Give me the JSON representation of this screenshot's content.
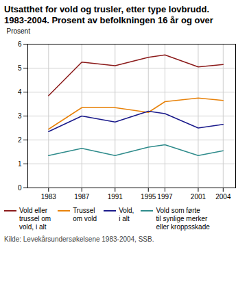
{
  "chart_data": {
    "type": "line",
    "title": "Utsatthet for vold og trusler, etter type lovbrudd.",
    "subtitle": "1983-2004. Prosent av befolkningen 16 år og over",
    "ylabel": "Prosent",
    "source": "Kilde: Levekårsundersøkelsene 1983-2004, SSB.",
    "x": [
      1983,
      1987,
      1991,
      1995,
      1997,
      2001,
      2004
    ],
    "series": [
      {
        "name": "Vold eller\ntrussel om\nvold, i alt",
        "color": "#8B1A1A",
        "values": [
          3.85,
          5.25,
          5.1,
          5.45,
          5.55,
          5.05,
          5.15
        ]
      },
      {
        "name": "Trussel\nom vold",
        "color": "#E8820A",
        "values": [
          2.45,
          3.35,
          3.35,
          3.15,
          3.6,
          3.75,
          3.65
        ]
      },
      {
        "name": "Vold,\ni alt",
        "color": "#1A1A8B",
        "values": [
          2.35,
          3.0,
          2.75,
          3.2,
          3.1,
          2.5,
          2.65
        ]
      },
      {
        "name": "Vold som førte\ntil synlige merker\neller kroppsskade",
        "color": "#2E8B8B",
        "values": [
          1.35,
          1.65,
          1.35,
          1.7,
          1.8,
          1.35,
          1.55
        ]
      }
    ],
    "xlim": [
      1980.5,
      2005.5
    ],
    "xticks": [
      1983,
      1987,
      1991,
      1995,
      1997,
      2001,
      2004
    ],
    "ylim": [
      0,
      6
    ],
    "yticks": [
      0,
      1,
      2,
      3,
      4,
      5,
      6
    ],
    "grid": true,
    "legend": "bottom"
  }
}
